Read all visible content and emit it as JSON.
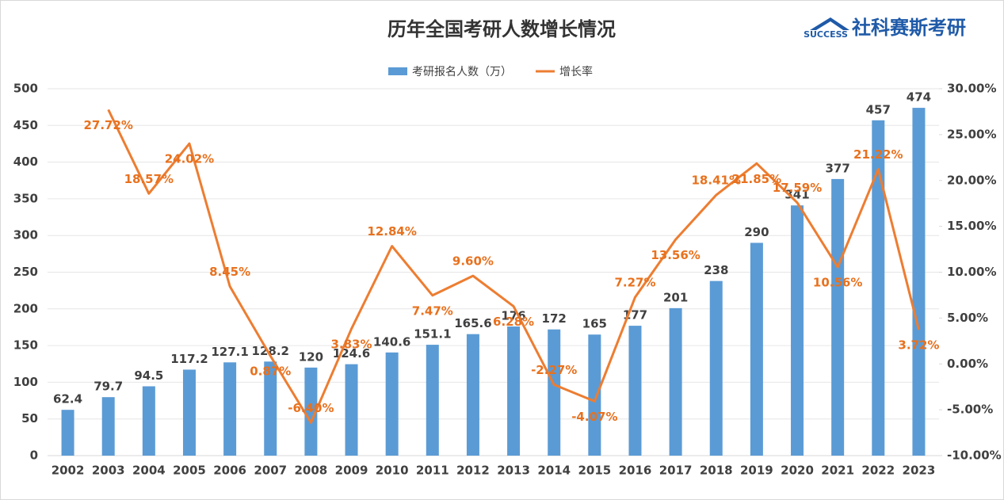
{
  "logo": {
    "text": "社科赛斯考研",
    "sub": "SUCCESS"
  },
  "chart_data": {
    "type": "combo",
    "title": "历年全国考研人数增长情况",
    "categories": [
      "2002",
      "2003",
      "2004",
      "2005",
      "2006",
      "2007",
      "2008",
      "2009",
      "2010",
      "2011",
      "2012",
      "2013",
      "2014",
      "2015",
      "2016",
      "2017",
      "2018",
      "2019",
      "2020",
      "2021",
      "2022",
      "2023"
    ],
    "series": [
      {
        "name": "考研报名人数（万）",
        "type": "bar",
        "axis": "y",
        "color": "#5b9bd5",
        "values": [
          62.4,
          79.7,
          94.5,
          117.2,
          127.1,
          128.2,
          120,
          124.6,
          140.6,
          151.1,
          165.6,
          176,
          172,
          165,
          177,
          201,
          238,
          290,
          341,
          377,
          457,
          474
        ]
      },
      {
        "name": "增长率",
        "type": "line",
        "axis": "y2",
        "color": "#ed7d31",
        "values": [
          null,
          27.72,
          18.57,
          24.02,
          8.45,
          0.87,
          -6.4,
          3.83,
          12.84,
          7.47,
          9.6,
          6.28,
          -2.27,
          -4.07,
          7.27,
          13.56,
          18.41,
          21.85,
          17.59,
          10.56,
          21.22,
          3.72
        ],
        "value_labels": [
          null,
          "27.72%",
          "18.57%",
          "24.02%",
          "8.45%",
          "0.87%",
          "-6.40%",
          "3.83%",
          "12.84%",
          "7.47%",
          "9.60%",
          "6.28%",
          "-2.27%",
          "-4.07%",
          "7.27%",
          "13.56%",
          "18.41%",
          "21.85%",
          "17.59%",
          "10.56%",
          "21.22%",
          "3.72%"
        ]
      }
    ],
    "ylim": [
      0,
      500
    ],
    "yticks": [
      0,
      50,
      100,
      150,
      200,
      250,
      300,
      350,
      400,
      450,
      500
    ],
    "y2lim": [
      -10,
      30
    ],
    "y2ticks": [
      {
        "value": -10,
        "label": "-10.00%"
      },
      {
        "value": -5,
        "label": "-5.00%"
      },
      {
        "value": 0,
        "label": "0.00%"
      },
      {
        "value": 5,
        "label": "5.00%"
      },
      {
        "value": 10,
        "label": "10.00%"
      },
      {
        "value": 15,
        "label": "15.00%"
      },
      {
        "value": 20,
        "label": "20.00%"
      },
      {
        "value": 25,
        "label": "25.00%"
      },
      {
        "value": 30,
        "label": "30.00%"
      }
    ],
    "grid": true,
    "legend": "top"
  }
}
